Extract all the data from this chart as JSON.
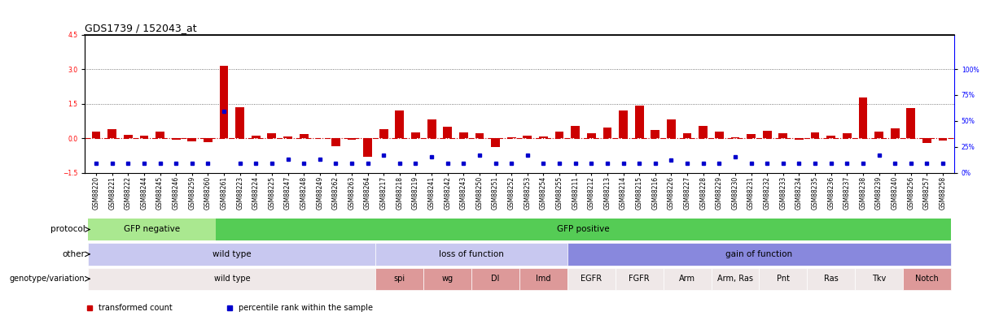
{
  "title": "GDS1739 / 152043_at",
  "samples": [
    "GSM88220",
    "GSM88221",
    "GSM88222",
    "GSM88244",
    "GSM88245",
    "GSM88246",
    "GSM88259",
    "GSM88260",
    "GSM88261",
    "GSM88223",
    "GSM88224",
    "GSM88225",
    "GSM88247",
    "GSM88248",
    "GSM88249",
    "GSM88262",
    "GSM88263",
    "GSM88264",
    "GSM88217",
    "GSM88218",
    "GSM88219",
    "GSM88241",
    "GSM88242",
    "GSM88243",
    "GSM88250",
    "GSM88251",
    "GSM88252",
    "GSM88253",
    "GSM88254",
    "GSM88255",
    "GSM88211",
    "GSM88212",
    "GSM88213",
    "GSM88214",
    "GSM88215",
    "GSM88216",
    "GSM88226",
    "GSM88227",
    "GSM88228",
    "GSM88229",
    "GSM88230",
    "GSM88231",
    "GSM88232",
    "GSM88233",
    "GSM88234",
    "GSM88235",
    "GSM88236",
    "GSM88237",
    "GSM88238",
    "GSM88239",
    "GSM88240",
    "GSM88256",
    "GSM88257",
    "GSM88258"
  ],
  "bar_values": [
    0.3,
    0.38,
    0.15,
    0.12,
    0.28,
    -0.08,
    -0.12,
    -0.18,
    3.15,
    1.35,
    0.1,
    0.22,
    0.08,
    0.18,
    0.02,
    -0.35,
    -0.05,
    -0.8,
    0.4,
    1.2,
    0.25,
    0.8,
    0.5,
    0.25,
    0.22,
    -0.4,
    0.05,
    0.12,
    0.08,
    0.28,
    0.55,
    0.22,
    0.45,
    1.2,
    1.4,
    0.35,
    0.8,
    0.22,
    0.55,
    0.3,
    0.05,
    0.18,
    0.32,
    0.22,
    -0.08,
    0.25,
    0.12,
    0.22,
    1.75,
    0.28,
    0.42,
    1.3,
    -0.22,
    -0.1
  ],
  "percentile_values": [
    -1.1,
    -1.1,
    -1.1,
    -1.1,
    -1.1,
    -1.1,
    -1.1,
    -1.1,
    1.15,
    -1.1,
    -1.1,
    -1.1,
    -0.9,
    -1.1,
    -0.9,
    -1.1,
    -1.1,
    -1.1,
    -0.75,
    -1.1,
    -1.1,
    -0.8,
    -1.1,
    -1.1,
    -0.75,
    -1.1,
    -1.1,
    -0.75,
    -1.1,
    -1.1,
    -1.1,
    -1.1,
    -1.1,
    -1.1,
    -1.1,
    -1.1,
    -0.95,
    -1.1,
    -1.1,
    -1.1,
    -0.8,
    -1.1,
    -1.1,
    -1.1,
    -1.1,
    -1.1,
    -1.1,
    -1.1,
    -1.1,
    -0.75,
    -1.1,
    -1.1,
    -1.1,
    -1.1
  ],
  "ylim": [
    -1.5,
    4.5
  ],
  "yticks_left": [
    -1.5,
    0.0,
    1.5,
    3.0,
    4.5
  ],
  "yticks_right_labels": [
    "0%",
    "25%",
    "50%",
    "75%",
    "100%"
  ],
  "right_tick_positions": [
    -1.5,
    -0.375,
    0.75,
    1.875,
    3.0
  ],
  "bar_color": "#cc0000",
  "percentile_color": "#0000cc",
  "zero_line_color": "#cc0000",
  "dotted_line_color": "#555555",
  "background_color": "#ffffff",
  "protocol_groups": [
    {
      "label": "GFP negative",
      "start": 0,
      "end": 8,
      "color": "#aae890"
    },
    {
      "label": "GFP positive",
      "start": 8,
      "end": 54,
      "color": "#55cc55"
    }
  ],
  "other_groups": [
    {
      "label": "wild type",
      "start": 0,
      "end": 18,
      "color": "#c8c8f0"
    },
    {
      "label": "loss of function",
      "start": 18,
      "end": 30,
      "color": "#c8c8f0"
    },
    {
      "label": "gain of function",
      "start": 30,
      "end": 54,
      "color": "#8888dd"
    }
  ],
  "genotype_groups": [
    {
      "label": "wild type",
      "start": 0,
      "end": 18,
      "color": "#efe8e8"
    },
    {
      "label": "spi",
      "start": 18,
      "end": 21,
      "color": "#dd9999"
    },
    {
      "label": "wg",
      "start": 21,
      "end": 24,
      "color": "#dd9999"
    },
    {
      "label": "Dl",
      "start": 24,
      "end": 27,
      "color": "#dd9999"
    },
    {
      "label": "Imd",
      "start": 27,
      "end": 30,
      "color": "#dd9999"
    },
    {
      "label": "EGFR",
      "start": 30,
      "end": 33,
      "color": "#efe8e8"
    },
    {
      "label": "FGFR",
      "start": 33,
      "end": 36,
      "color": "#efe8e8"
    },
    {
      "label": "Arm",
      "start": 36,
      "end": 39,
      "color": "#efe8e8"
    },
    {
      "label": "Arm, Ras",
      "start": 39,
      "end": 42,
      "color": "#efe8e8"
    },
    {
      "label": "Pnt",
      "start": 42,
      "end": 45,
      "color": "#efe8e8"
    },
    {
      "label": "Ras",
      "start": 45,
      "end": 48,
      "color": "#efe8e8"
    },
    {
      "label": "Tkv",
      "start": 48,
      "end": 51,
      "color": "#efe8e8"
    },
    {
      "label": "Notch",
      "start": 51,
      "end": 54,
      "color": "#dd9999"
    }
  ],
  "legend_items": [
    {
      "label": "transformed count",
      "color": "#cc0000",
      "marker": "s"
    },
    {
      "label": "percentile rank within the sample",
      "color": "#0000cc",
      "marker": "s"
    }
  ],
  "row_labels": [
    "protocol",
    "other",
    "genotype/variation"
  ],
  "title_fontsize": 9,
  "tick_fontsize": 5.5,
  "label_fontsize": 7.5,
  "row_label_fontsize": 7.5,
  "geno_label_fontsize": 7
}
